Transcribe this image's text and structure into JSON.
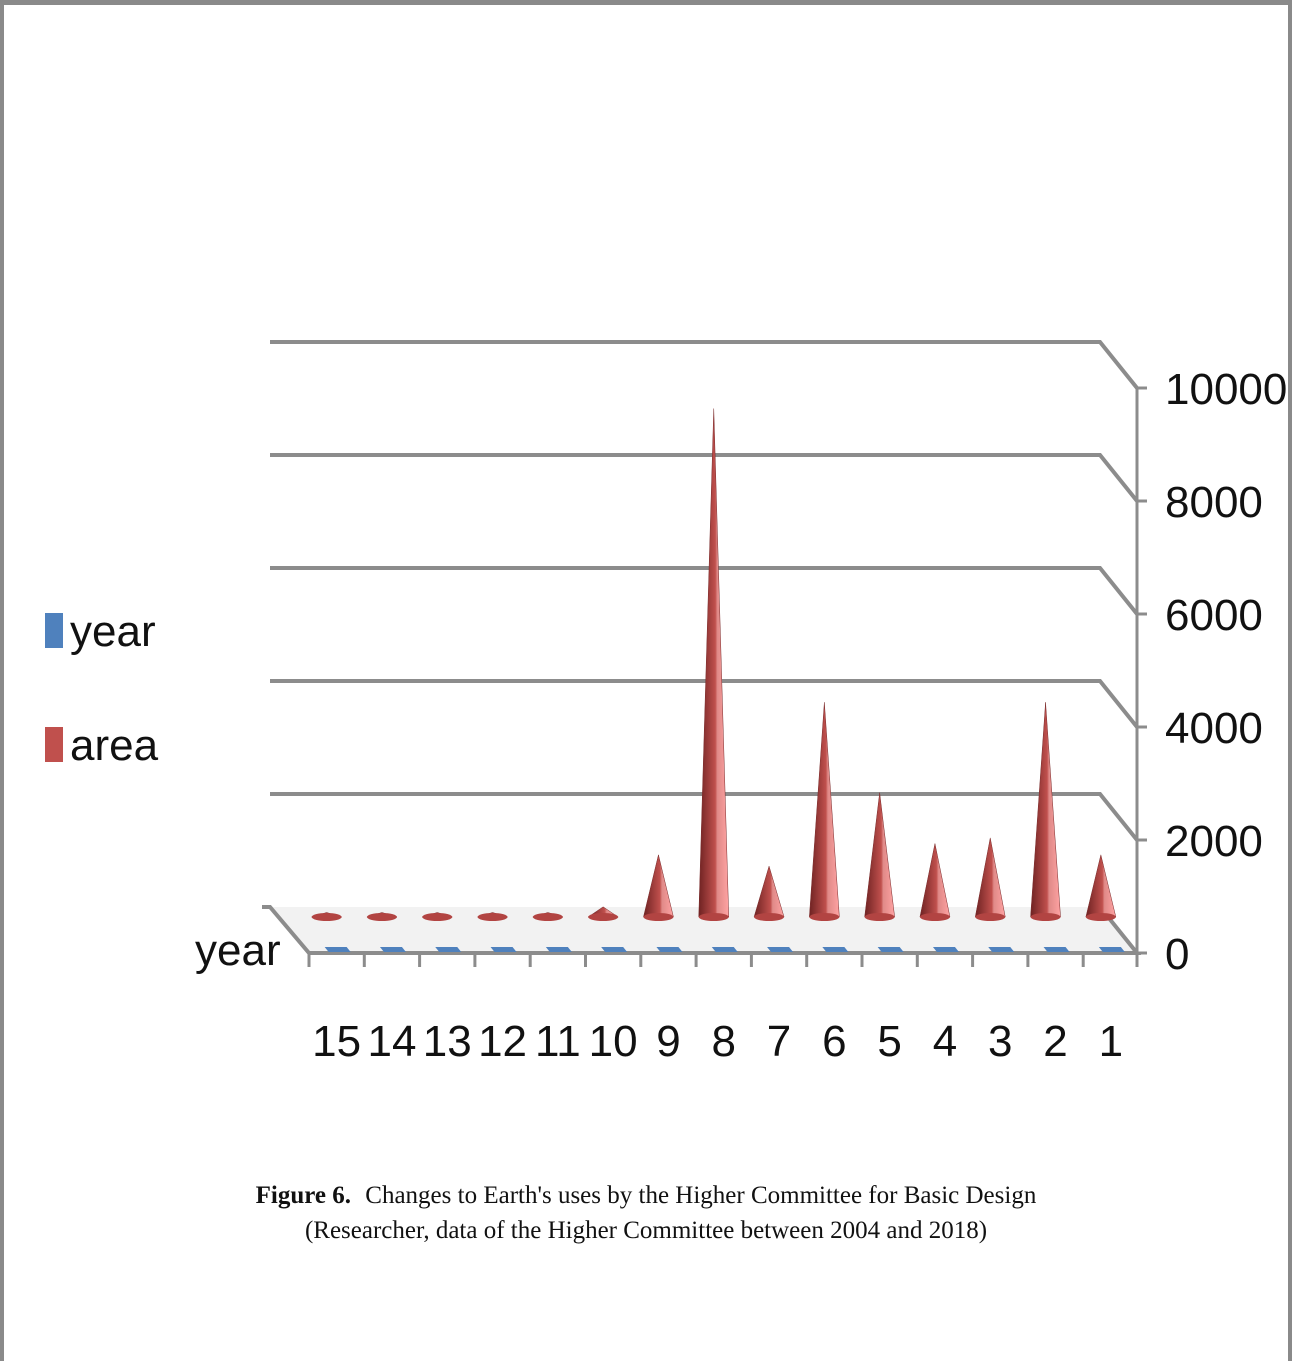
{
  "caption": {
    "label": "Figure 6.",
    "title": "Changes to Earth's uses by the Higher Committee for Basic Design",
    "source": "(Researcher, data of the Higher Committee between 2004 and 2018)"
  },
  "chart_data": {
    "type": "bar",
    "style": "3d-cone",
    "categories": [
      "15",
      "14",
      "13",
      "12",
      "11",
      "10",
      "9",
      "8",
      "7",
      "6",
      "5",
      "4",
      "3",
      "2",
      "1"
    ],
    "series": [
      {
        "name": "year",
        "color": "#4f81bd",
        "values": [
          0,
          0,
          0,
          0,
          0,
          0,
          0,
          0,
          0,
          0,
          0,
          0,
          0,
          0,
          0
        ]
      },
      {
        "name": "area",
        "color": "#c0504d",
        "values": [
          80,
          80,
          80,
          80,
          80,
          180,
          1100,
          9000,
          900,
          3800,
          2200,
          1300,
          1400,
          3800,
          1100
        ]
      }
    ],
    "depth_axis_label": "year",
    "yticks": [
      "0",
      "2000",
      "4000",
      "6000",
      "8000",
      "10000"
    ],
    "ylim": [
      0,
      10000
    ],
    "legend_position": "left",
    "grid": true
  }
}
